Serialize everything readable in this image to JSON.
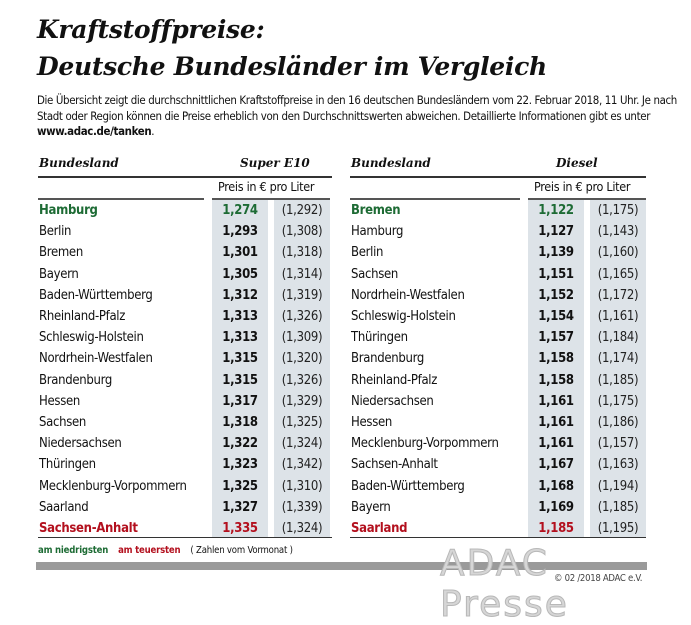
{
  "title_line1": "Kraftstoffpreise:",
  "title_line2": "Deutsche Bundesländer im Vergleich",
  "intro_text": "Die Übersicht zeigt die durchschnittlichen Kraftstoffpreise in den 16 deutschen Bundesländern vom 22. Februar 2018, 11 Uhr. Je nach Stadt oder Region können die Preise erheblich von den Durchschnittswerten abweichen. Detaillierte Informationen gibt es unter ",
  "intro_link": "www.adac.de/tanken",
  "intro_end": ".",
  "colors": {
    "lowest": "#1d6b34",
    "highest": "#b3101e",
    "column_bg": "#dde3e8"
  },
  "super": {
    "header_state": "Bundesland",
    "header_fuel": "Super E10",
    "subheader": "Preis in € pro Liter",
    "rows": [
      {
        "state": "Hamburg",
        "price": "1,274",
        "prev": "(1,292)",
        "mark": "green"
      },
      {
        "state": "Berlin",
        "price": "1,293",
        "prev": "(1,308)"
      },
      {
        "state": "Bremen",
        "price": "1,301",
        "prev": "(1,318)"
      },
      {
        "state": "Bayern",
        "price": "1,305",
        "prev": "(1,314)"
      },
      {
        "state": "Baden-Württemberg",
        "price": "1,312",
        "prev": "(1,319)"
      },
      {
        "state": "Rheinland-Pfalz",
        "price": "1,313",
        "prev": "(1,326)"
      },
      {
        "state": "Schleswig-Holstein",
        "price": "1,313",
        "prev": "(1,309)"
      },
      {
        "state": "Nordrhein-Westfalen",
        "price": "1,315",
        "prev": "(1,320)"
      },
      {
        "state": "Brandenburg",
        "price": "1,315",
        "prev": "(1,326)"
      },
      {
        "state": "Hessen",
        "price": "1,317",
        "prev": "(1,329)"
      },
      {
        "state": "Sachsen",
        "price": "1,318",
        "prev": "(1,325)"
      },
      {
        "state": "Niedersachsen",
        "price": "1,322",
        "prev": "(1,324)"
      },
      {
        "state": "Thüringen",
        "price": "1,323",
        "prev": "(1,342)"
      },
      {
        "state": "Mecklenburg-Vorpommern",
        "price": "1,325",
        "prev": "(1,310)"
      },
      {
        "state": "Saarland",
        "price": "1,327",
        "prev": "(1,339)"
      },
      {
        "state": "Sachsen-Anhalt",
        "price": "1,335",
        "prev": "(1,324)",
        "mark": "red"
      }
    ]
  },
  "diesel": {
    "header_state": "Bundesland",
    "header_fuel": "Diesel",
    "subheader": "Preis in € pro Liter",
    "rows": [
      {
        "state": "Bremen",
        "price": "1,122",
        "prev": "(1,175)",
        "mark": "green"
      },
      {
        "state": "Hamburg",
        "price": "1,127",
        "prev": "(1,143)"
      },
      {
        "state": "Berlin",
        "price": "1,139",
        "prev": "(1,160)"
      },
      {
        "state": "Sachsen",
        "price": "1,151",
        "prev": "(1,165)"
      },
      {
        "state": "Nordrhein-Westfalen",
        "price": "1,152",
        "prev": "(1,172)"
      },
      {
        "state": "Schleswig-Holstein",
        "price": "1,154",
        "prev": "(1,161)"
      },
      {
        "state": "Thüringen",
        "price": "1,157",
        "prev": "(1,184)"
      },
      {
        "state": "Brandenburg",
        "price": "1,158",
        "prev": "(1,174)"
      },
      {
        "state": "Rheinland-Pfalz",
        "price": "1,158",
        "prev": "(1,185)"
      },
      {
        "state": "Niedersachsen",
        "price": "1,161",
        "prev": "(1,175)"
      },
      {
        "state": "Hessen",
        "price": "1,161",
        "prev": "(1,186)"
      },
      {
        "state": "Mecklenburg-Vorpommern",
        "price": "1,161",
        "prev": "(1,157)"
      },
      {
        "state": "Sachsen-Anhalt",
        "price": "1,167",
        "prev": "(1,163)"
      },
      {
        "state": "Baden-Württemberg",
        "price": "1,168",
        "prev": "(1,194)"
      },
      {
        "state": "Bayern",
        "price": "1,169",
        "prev": "(1,185)"
      },
      {
        "state": "Saarland",
        "price": "1,185",
        "prev": "(1,195)",
        "mark": "red"
      }
    ]
  },
  "legend": {
    "lowest": "am niedrigsten",
    "highest": "am teuersten",
    "note": "( Zahlen vom Vormonat )"
  },
  "watermark": "ADAC Presse",
  "copyright": "© 02 /2018 ADAC e.V."
}
